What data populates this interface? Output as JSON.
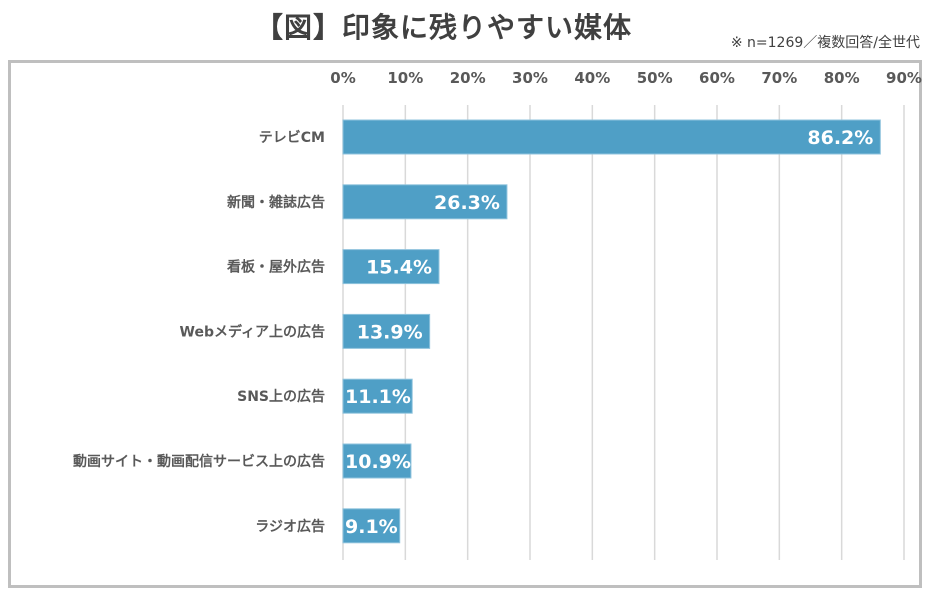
{
  "chart_data": {
    "type": "bar",
    "orientation": "horizontal",
    "title": "【図】印象に残りやすい媒体",
    "subtitle": "※ n=1269／複数回答/全世代",
    "categories": [
      "テレビCM",
      "新聞・雑誌広告",
      "看板・屋外広告",
      "Webメディア上の広告",
      "SNS上の広告",
      "動画サイト・動画配信サービス上の広告",
      "ラジオ広告"
    ],
    "values": [
      86.2,
      26.3,
      15.4,
      13.9,
      11.1,
      10.9,
      9.1
    ],
    "value_labels": [
      "86.2%",
      "26.3%",
      "15.4%",
      "13.9%",
      "11.1%",
      "10.9%",
      "9.1%"
    ],
    "xlim": [
      0,
      90
    ],
    "ticks": [
      "0%",
      "10%",
      "20%",
      "30%",
      "40%",
      "50%",
      "60%",
      "70%",
      "80%",
      "90%"
    ],
    "axis_position": "top",
    "grid": true,
    "bar_color": "#4f9fc6",
    "grid_color": "#d9d9d9"
  }
}
